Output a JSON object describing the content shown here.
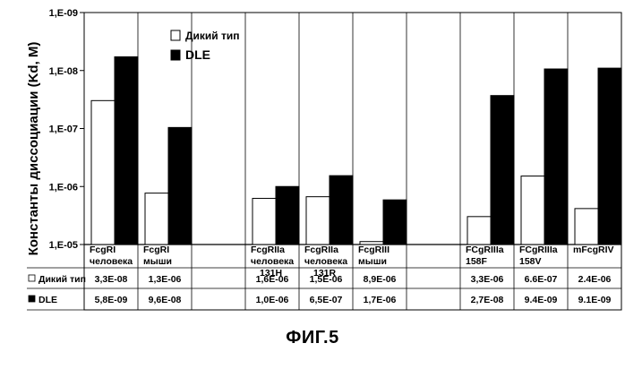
{
  "chart_data": {
    "type": "bar",
    "title": "",
    "ylabel": "Константы диссоциации (Kd, M)",
    "xlabel": "",
    "y_scale": "log",
    "y_axis_reversed": true,
    "ylim": [
      1e-05,
      1e-09
    ],
    "y_ticks": [
      "1,E-09",
      "1,E-08",
      "1,E-07",
      "1,E-06",
      "1,E-05"
    ],
    "grid": "vertical separators only",
    "legend_position": "top-left",
    "categories": [
      [
        "FcgRI",
        "человека"
      ],
      [
        "FcgRI",
        "мыши"
      ],
      [
        "",
        ""
      ],
      [
        "FcgRIIa",
        "человека",
        "131H"
      ],
      [
        "FcgRIIa",
        "человека",
        "131R"
      ],
      [
        "FcgRIII",
        "мыши"
      ],
      [
        "",
        ""
      ],
      [
        "FCgRIIIa",
        "158F"
      ],
      [
        "FCgRIIIa",
        "158V"
      ],
      [
        "mFcgRIV"
      ]
    ],
    "series": [
      {
        "name": "Дикий тип",
        "color": "#ffffff",
        "values": [
          3.3e-08,
          1.3e-06,
          null,
          1.6e-06,
          1.5e-06,
          8.9e-06,
          null,
          3.3e-06,
          6.6e-07,
          2.4e-06
        ],
        "table_labels": [
          "3,3E-08",
          "1,3E-06",
          "",
          "1,6E-06",
          "1,5E-06",
          "8,9E-06",
          "",
          "3,3E-06",
          "6.6E-07",
          "2.4E-06"
        ]
      },
      {
        "name": "DLE",
        "color": "#000000",
        "values": [
          5.8e-09,
          9.6e-08,
          null,
          1e-06,
          6.5e-07,
          1.7e-06,
          null,
          2.7e-08,
          9.4e-09,
          9.1e-09
        ],
        "table_labels": [
          "5,8E-09",
          "9,6E-08",
          "",
          "1,0E-06",
          "6,5E-07",
          "1,7E-06",
          "",
          "2,7E-08",
          "9.4E-09",
          "9.1E-09"
        ]
      }
    ]
  },
  "figure_caption": "ФИГ.5",
  "table_row_labels": [
    "Дикий тип",
    "DLE"
  ]
}
